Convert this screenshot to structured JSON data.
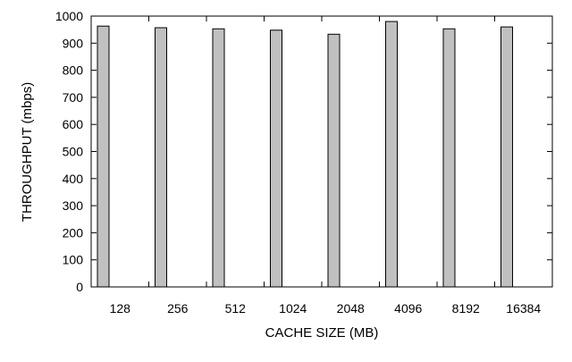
{
  "chart_data": {
    "type": "bar",
    "title": "",
    "xlabel": "CACHE SIZE (MB)",
    "ylabel": "THROUGHPUT (mbps)",
    "categories": [
      "128",
      "256",
      "512",
      "1024",
      "2048",
      "4096",
      "8192",
      "16384"
    ],
    "series": [
      {
        "values": [
          963,
          957,
          953,
          948,
          933,
          980,
          953,
          960
        ]
      }
    ],
    "ylim": [
      0,
      1000
    ],
    "yticks": [
      0,
      100,
      200,
      300,
      400,
      500,
      600,
      700,
      800,
      900,
      1000
    ],
    "grid": false,
    "legend": "none",
    "colors": {
      "bar_fill": "#c0c0c0",
      "bar_stroke": "#000000",
      "axis": "#000000"
    }
  }
}
